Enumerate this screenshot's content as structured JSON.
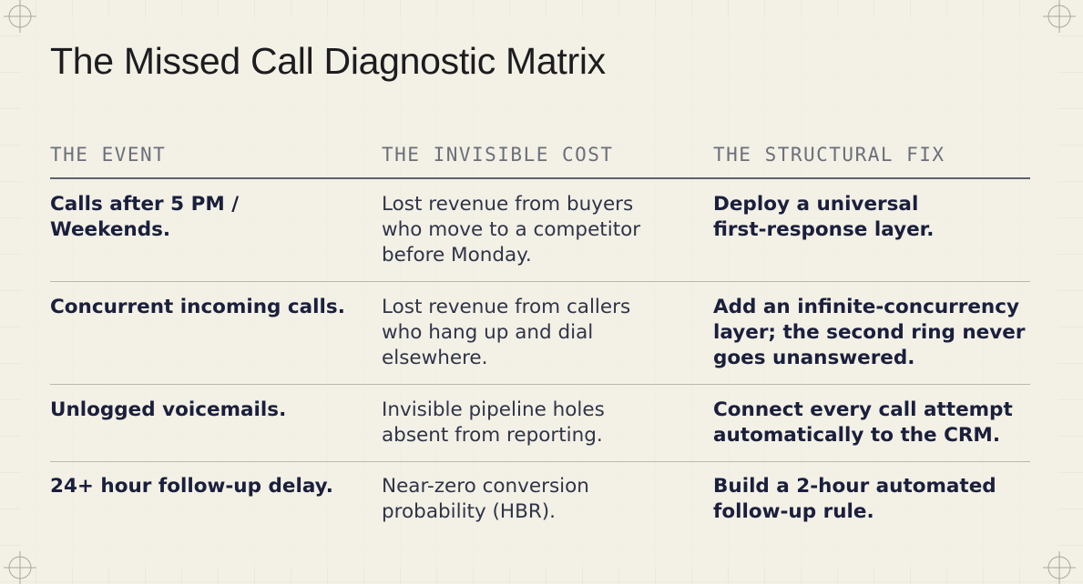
{
  "header": {
    "title": "The Missed Call Diagnostic Matrix"
  },
  "table": {
    "columns": [
      "THE EVENT",
      "THE INVISIBLE COST",
      "THE STRUCTURAL FIX"
    ],
    "rows": [
      [
        [
          "Calls after 5 PM /",
          "Weekends."
        ],
        [
          "Lost revenue from buyers",
          "who move to a competitor",
          "before Monday."
        ],
        [
          "Deploy a universal",
          "first-response layer."
        ]
      ],
      [
        [
          "Concurrent incoming calls."
        ],
        [
          "Lost revenue from callers",
          "who hang up and dial",
          "elsewhere."
        ],
        [
          "Add an infinite-concurrency",
          "layer; the second ring never",
          "goes unanswered."
        ]
      ],
      [
        [
          "Unlogged voicemails."
        ],
        [
          "Invisible pipeline holes",
          "absent from reporting."
        ],
        [
          "Connect every call attempt",
          "automatically to the CRM."
        ]
      ],
      [
        [
          "24+ hour follow-up delay."
        ],
        [
          "Near-zero conversion",
          "probability (HBR)."
        ],
        [
          "Build a 2-hour automated",
          "follow-up rule."
        ]
      ]
    ]
  }
}
